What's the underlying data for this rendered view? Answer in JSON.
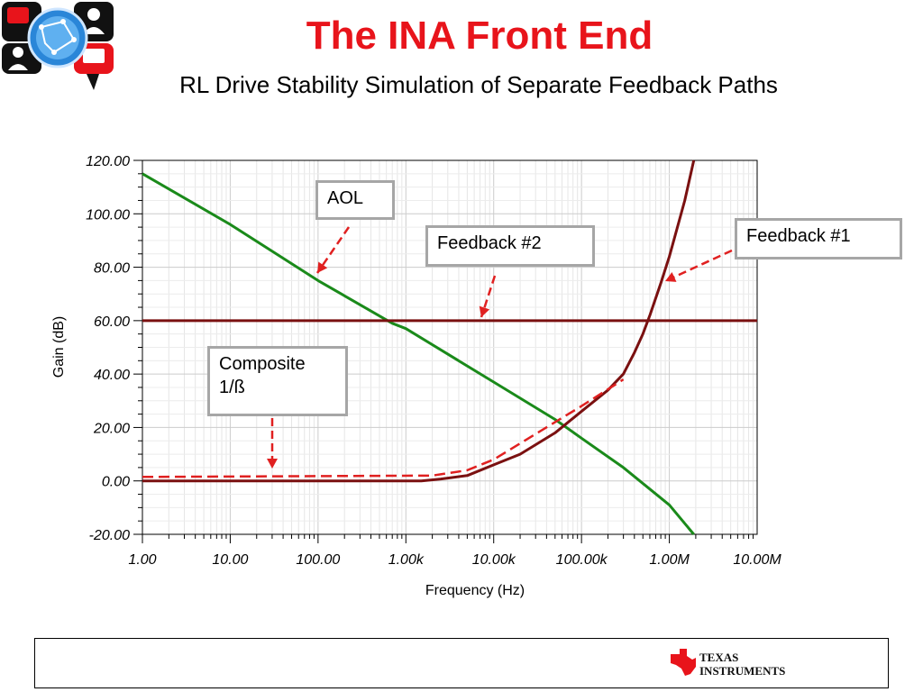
{
  "title": "The INA Front End",
  "subtitle": "RL Drive Stability Simulation of Separate Feedback Paths",
  "brand": {
    "company_line1": "Texas",
    "company_line2": "Instruments"
  },
  "colors": {
    "title": "#e8141b",
    "aol": "#1a8a1a",
    "feedback": "#7a1010",
    "callout_arrow": "#e02020",
    "callout_border": "#a6a6a6"
  },
  "callouts": {
    "aol": "AOL",
    "feedback2": "Feedback #2",
    "feedback1": "Feedback #1",
    "composite_line1": "Composite",
    "composite_line2": "1/ß"
  },
  "chart_data": {
    "type": "line",
    "xlabel": "Frequency (Hz)",
    "ylabel": "Gain (dB)",
    "x_scale": "log",
    "xlim": [
      1,
      10000000
    ],
    "ylim": [
      -20,
      120
    ],
    "grid": true,
    "x_ticks": [
      {
        "value": 1,
        "label": "1.00"
      },
      {
        "value": 10,
        "label": "10.00"
      },
      {
        "value": 100,
        "label": "100.00"
      },
      {
        "value": 1000,
        "label": "1.00k"
      },
      {
        "value": 10000,
        "label": "10.00k"
      },
      {
        "value": 100000,
        "label": "100.00k"
      },
      {
        "value": 1000000,
        "label": "1.00M"
      },
      {
        "value": 10000000,
        "label": "10.00M"
      }
    ],
    "y_ticks": [
      {
        "value": 120,
        "label": "120.00"
      },
      {
        "value": 100,
        "label": "100.00"
      },
      {
        "value": 80,
        "label": "80.00"
      },
      {
        "value": 60,
        "label": "60.00"
      },
      {
        "value": 40,
        "label": "40.00"
      },
      {
        "value": 20,
        "label": "20.00"
      },
      {
        "value": 0,
        "label": "0.00"
      },
      {
        "value": -20,
        "label": "-20.00"
      }
    ],
    "series": [
      {
        "name": "AOL",
        "color": "#1a8a1a",
        "x": [
          1,
          10,
          100,
          700,
          1000,
          10000,
          50000,
          100000,
          300000,
          1000000,
          1900000
        ],
        "y": [
          115,
          96,
          75,
          59,
          57,
          37,
          23,
          16,
          5,
          -9,
          -20
        ]
      },
      {
        "name": "Feedback #2",
        "color": "#7a1010",
        "x": [
          1,
          10000000
        ],
        "y": [
          60,
          60
        ]
      },
      {
        "name": "Feedback #1",
        "color": "#7a1010",
        "x": [
          1,
          100,
          1000,
          1500,
          2500,
          5000,
          10000,
          20000,
          50000,
          100000,
          200000,
          300000,
          400000,
          500000,
          600000,
          800000,
          1000000,
          1500000,
          1900000
        ],
        "y": [
          0,
          0,
          0,
          0,
          0.7,
          2,
          6,
          10,
          18,
          26,
          34,
          40,
          48,
          55,
          62,
          74,
          84,
          105,
          120
        ]
      },
      {
        "name": "Composite 1/ß",
        "color": "#e02020",
        "dashed": true,
        "x": [
          1,
          2000,
          5000,
          10000,
          100000,
          300000
        ],
        "y": [
          1.5,
          2,
          4,
          8,
          28,
          38
        ]
      }
    ]
  }
}
